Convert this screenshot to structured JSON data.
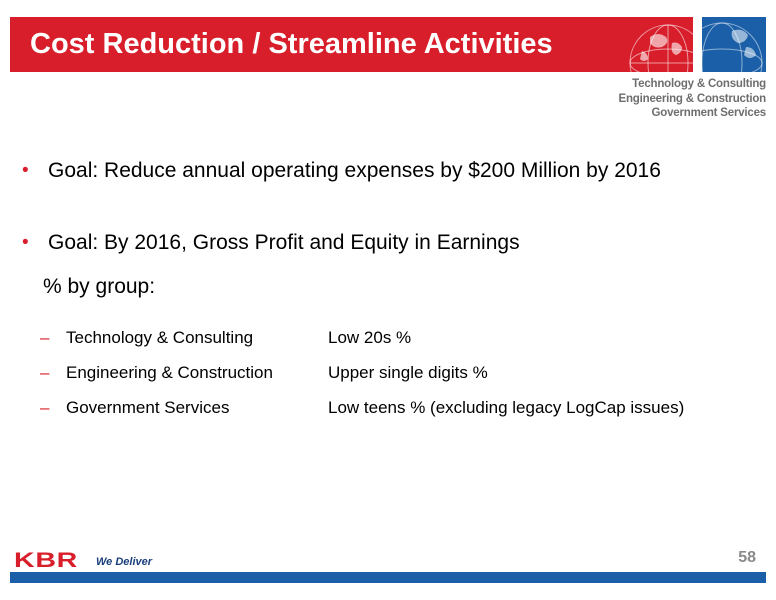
{
  "slide": {
    "title": "Cost Reduction / Streamline Activities",
    "page_number": "58"
  },
  "tagline": [
    "Technology & Consulting",
    "Engineering & Construction",
    "Government Services"
  ],
  "bullets": [
    {
      "marker": "•",
      "text": "Goal: Reduce annual operating expenses by $200 Million by 2016"
    },
    {
      "marker": "•",
      "text": "Goal: By 2016, Gross Profit and Equity in Earnings"
    }
  ],
  "bullet_continuation": "% by group:",
  "groups": [
    {
      "marker": "–",
      "name": "Technology & Consulting",
      "value": "Low 20s %"
    },
    {
      "marker": "–",
      "name": "Engineering & Construction",
      "value": "Upper single digits %"
    },
    {
      "marker": "–",
      "name": "Government Services",
      "value": "Low teens % (excluding legacy LogCap issues)"
    }
  ],
  "footer": {
    "logo_text": "KBR",
    "slogan": "We Deliver"
  },
  "colors": {
    "brand_red": "#d81e2a",
    "brand_blue": "#1a5fa8",
    "tagline_gray": "#6e6e6e"
  }
}
